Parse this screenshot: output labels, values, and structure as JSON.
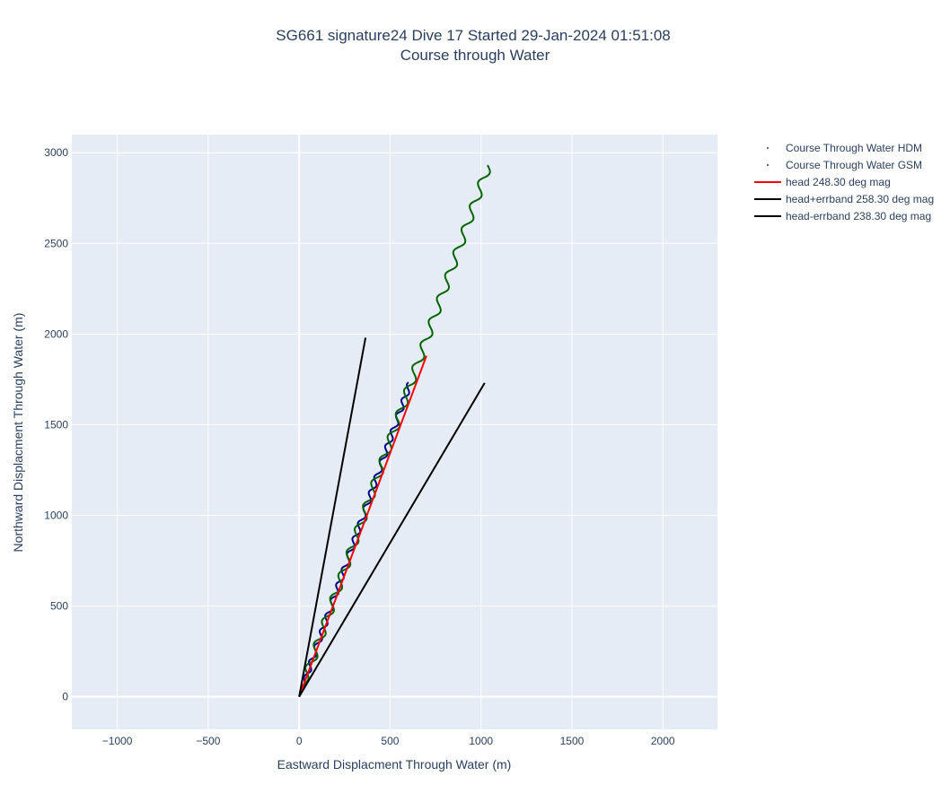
{
  "chart_data": {
    "type": "line",
    "title": "SG661 signature24 Dive 17 Started 29-Jan-2024 01:51:08",
    "subtitle": "Course through Water",
    "xlabel": "Eastward Displacment Through Water (m)",
    "ylabel": "Northward Displacment Through Water (m)",
    "xlim": [
      -1250,
      2300
    ],
    "ylim": [
      -180,
      3100
    ],
    "xticks": [
      -1000,
      -500,
      0,
      500,
      1000,
      1500,
      2000
    ],
    "yticks": [
      0,
      500,
      1000,
      1500,
      2000,
      2500,
      3000
    ],
    "xtick_labels": [
      "−1000",
      "−500",
      "0",
      "500",
      "1000",
      "1500",
      "2000"
    ],
    "ytick_labels": [
      "0",
      "500",
      "1000",
      "1500",
      "2000",
      "2500",
      "3000"
    ],
    "grid": true,
    "legend_position": "right",
    "series": [
      {
        "name": "Course Through Water HDM",
        "style": "wavy-line",
        "color": "#00008b",
        "start": [
          0,
          0
        ],
        "end": [
          610,
          1730
        ],
        "wiggle_amplitude_m": 14,
        "wiggle_period_m": 90,
        "legend_marker": "dot"
      },
      {
        "name": "Course Through Water GSM",
        "style": "wavy-line",
        "color": "#006400",
        "start": [
          0,
          0
        ],
        "end": [
          1040,
          2930
        ],
        "wiggle_amplitude_m": 22,
        "wiggle_period_m": 135,
        "legend_marker": "dot"
      },
      {
        "name": "head 248.30 deg mag",
        "style": "line",
        "color": "#ff0000",
        "points": [
          [
            0,
            0
          ],
          [
            700,
            1880
          ]
        ]
      },
      {
        "name": "head+errband 258.30 deg mag",
        "style": "line",
        "color": "#000000",
        "points": [
          [
            0,
            0
          ],
          [
            365,
            1980
          ]
        ]
      },
      {
        "name": "head-errband 238.30 deg mag",
        "style": "line",
        "color": "#000000",
        "points": [
          [
            0,
            0
          ],
          [
            1020,
            1730
          ]
        ]
      }
    ],
    "colors": {
      "plot_bg": "#e5ecf6",
      "grid": "#ffffff",
      "text": "#2a3f5f"
    }
  }
}
